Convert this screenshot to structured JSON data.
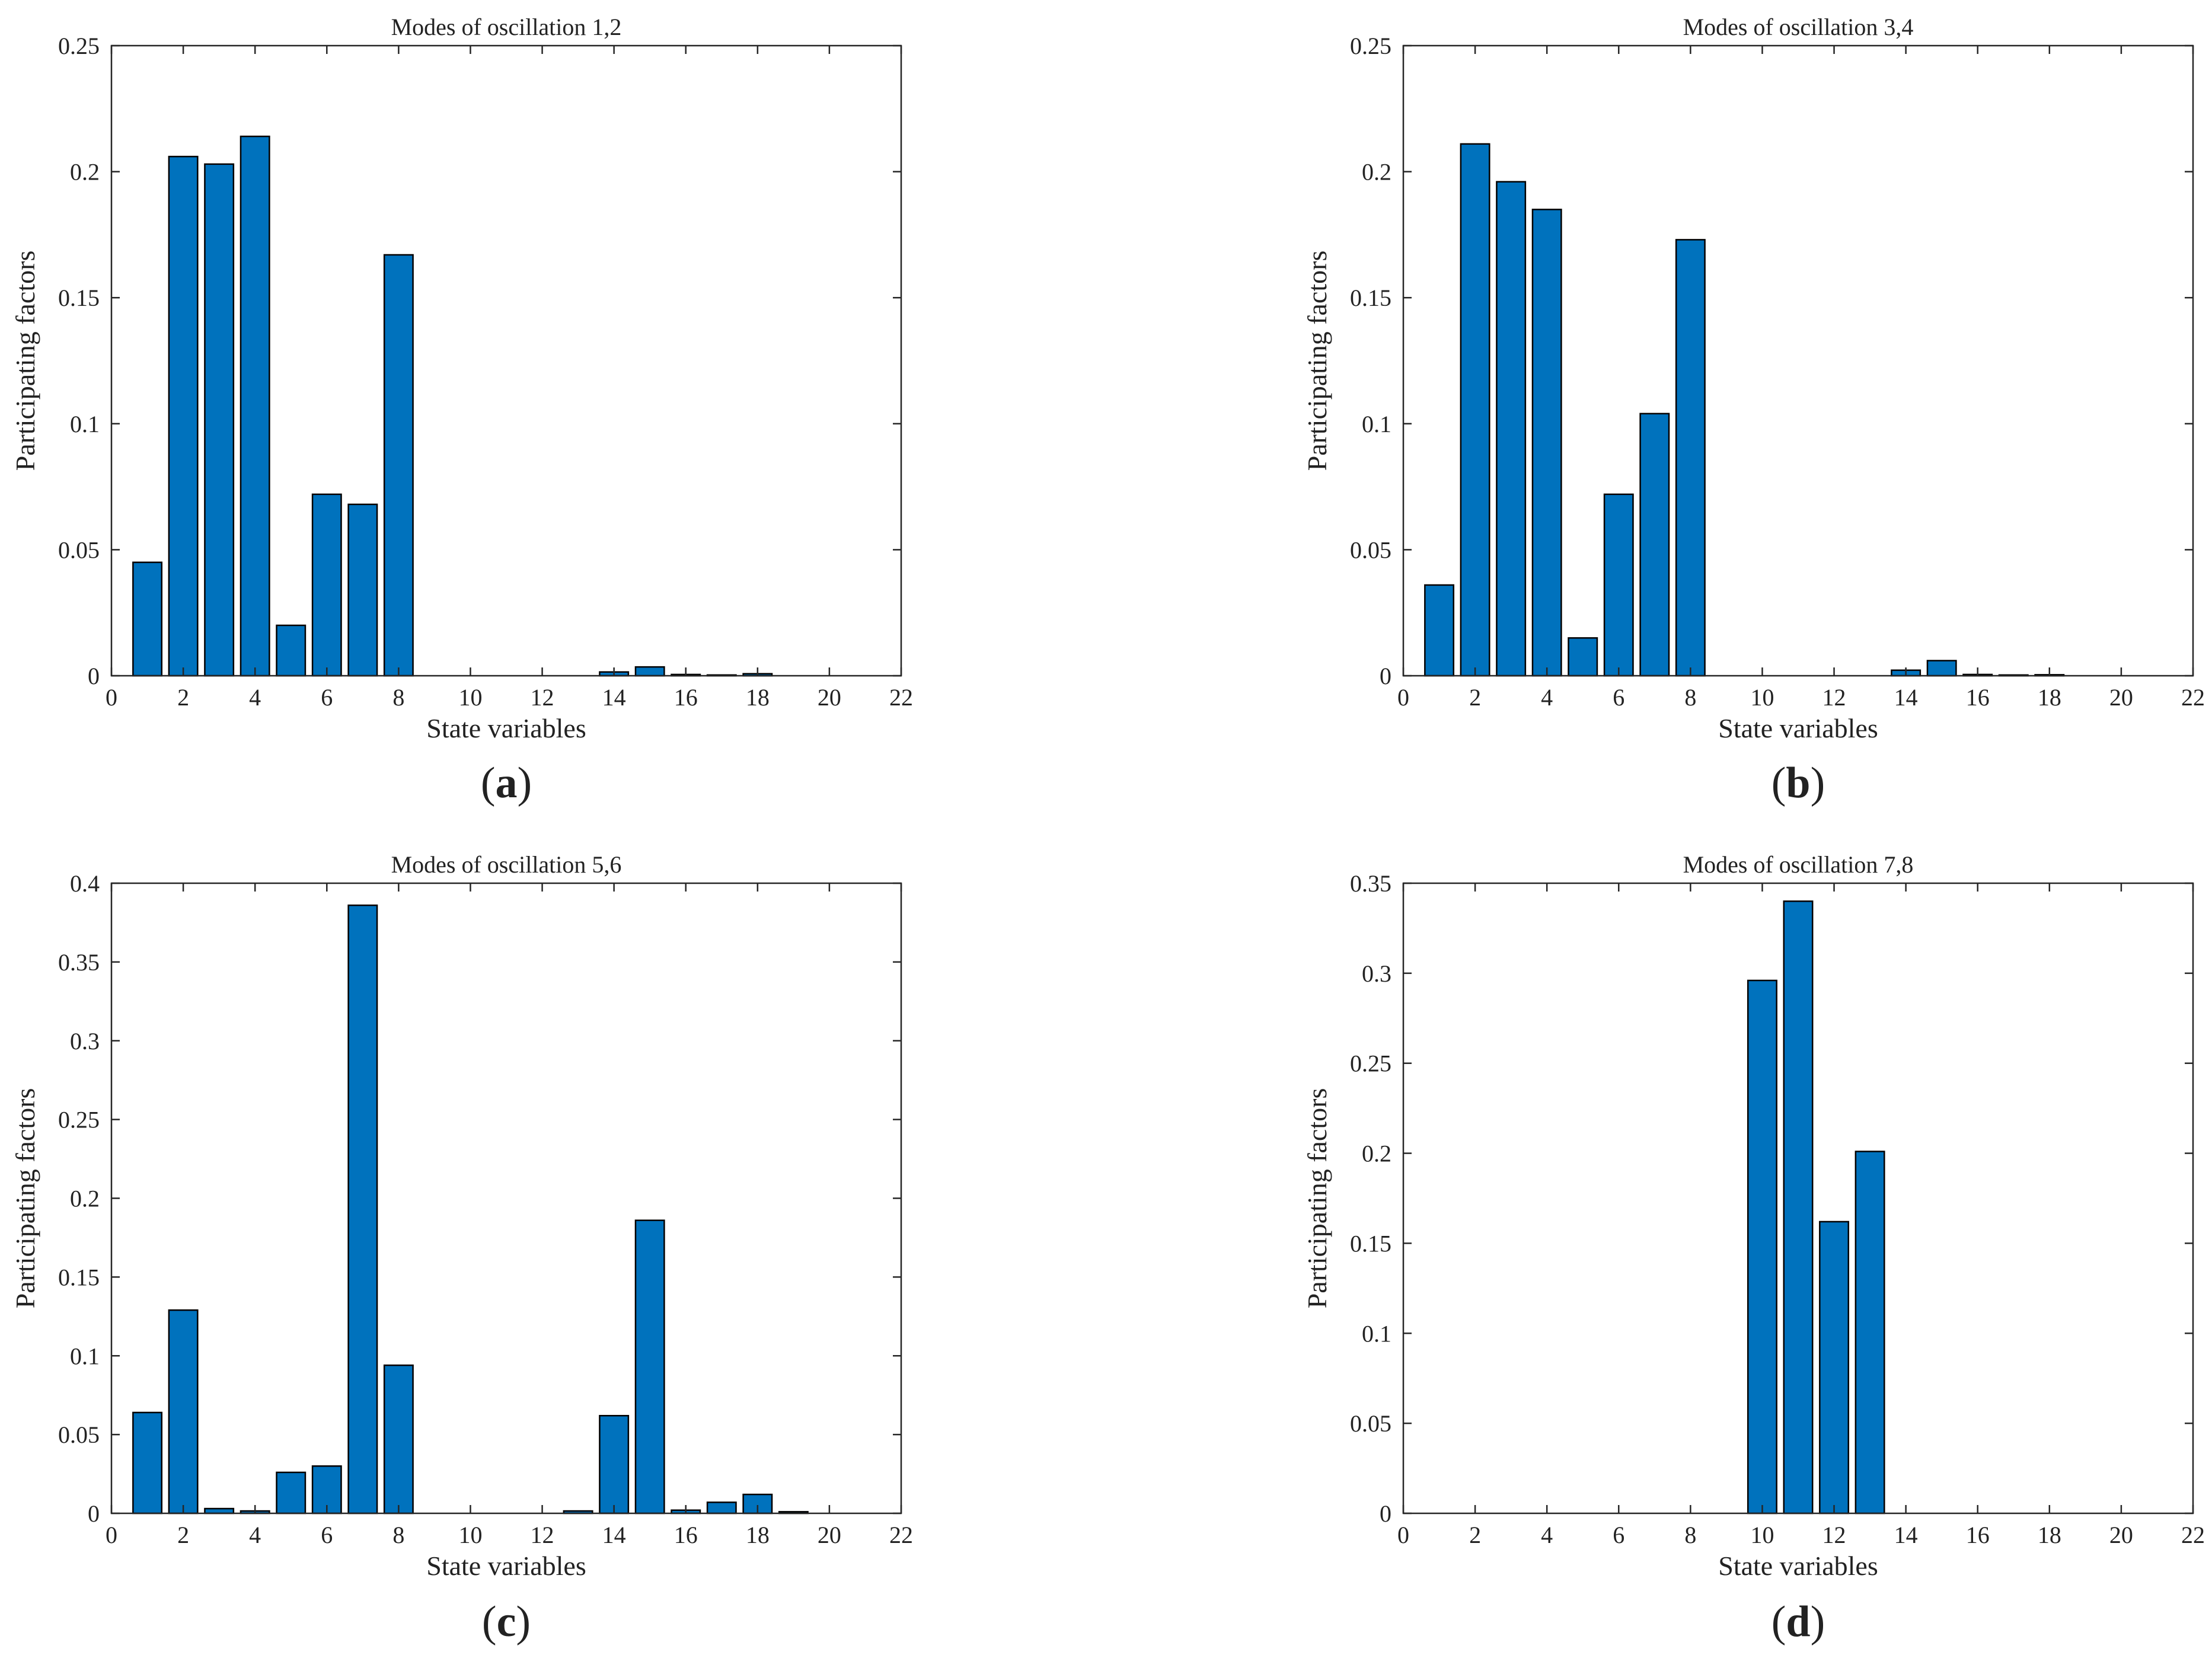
{
  "chart_data": [
    {
      "type": "bar",
      "panel": "a",
      "caption": "(a)",
      "caption_letter": "a",
      "title": "Modes of oscillation 1,2",
      "xlabel": "State variables",
      "ylabel": "Participating factors",
      "xlim": [
        0,
        22
      ],
      "ylim": [
        0,
        0.25
      ],
      "xticks": [
        0,
        2,
        4,
        6,
        8,
        10,
        12,
        14,
        16,
        18,
        20,
        22
      ],
      "yticks": [
        0,
        0.05,
        0.1,
        0.15,
        0.2,
        0.25
      ],
      "ytick_labels": [
        "0",
        "0.05",
        "0.1",
        "0.15",
        "0.2",
        "0.25"
      ],
      "bar_color": "#0072BD",
      "x": [
        1,
        2,
        3,
        4,
        5,
        6,
        7,
        8,
        9,
        10,
        11,
        12,
        13,
        14,
        15,
        16,
        17,
        18,
        19,
        20,
        21
      ],
      "values": [
        0.045,
        0.206,
        0.203,
        0.214,
        0.02,
        0.072,
        0.068,
        0.167,
        0,
        0,
        0,
        0,
        0,
        0.0015,
        0.0035,
        0.0005,
        0.0003,
        0.0008,
        0,
        0,
        0
      ]
    },
    {
      "type": "bar",
      "panel": "b",
      "caption": "(b)",
      "caption_letter": "b",
      "title": "Modes of oscillation 3,4",
      "xlabel": "State variables",
      "ylabel": "Participating factors",
      "xlim": [
        0,
        22
      ],
      "ylim": [
        0,
        0.25
      ],
      "xticks": [
        0,
        2,
        4,
        6,
        8,
        10,
        12,
        14,
        16,
        18,
        20,
        22
      ],
      "yticks": [
        0,
        0.05,
        0.1,
        0.15,
        0.2,
        0.25
      ],
      "ytick_labels": [
        "0",
        "0.05",
        "0.1",
        "0.15",
        "0.2",
        "0.25"
      ],
      "bar_color": "#0072BD",
      "x": [
        1,
        2,
        3,
        4,
        5,
        6,
        7,
        8,
        9,
        10,
        11,
        12,
        13,
        14,
        15,
        16,
        17,
        18,
        19,
        20,
        21
      ],
      "values": [
        0.036,
        0.211,
        0.196,
        0.185,
        0.015,
        0.072,
        0.104,
        0.173,
        0,
        0,
        0,
        0,
        0,
        0.0022,
        0.006,
        0.0005,
        0.0003,
        0.0004,
        0,
        0,
        0
      ]
    },
    {
      "type": "bar",
      "panel": "c",
      "caption": "(c)",
      "caption_letter": "c",
      "title": "Modes of oscillation 5,6",
      "xlabel": "State variables",
      "ylabel": "Participating factors",
      "xlim": [
        0,
        22
      ],
      "ylim": [
        0,
        0.4
      ],
      "xticks": [
        0,
        2,
        4,
        6,
        8,
        10,
        12,
        14,
        16,
        18,
        20,
        22
      ],
      "yticks": [
        0,
        0.05,
        0.1,
        0.15,
        0.2,
        0.25,
        0.3,
        0.35,
        0.4
      ],
      "ytick_labels": [
        "0",
        "0.05",
        "0.1",
        "0.15",
        "0.2",
        "0.25",
        "0.3",
        "0.35",
        "0.4"
      ],
      "bar_color": "#0072BD",
      "x": [
        1,
        2,
        3,
        4,
        5,
        6,
        7,
        8,
        9,
        10,
        11,
        12,
        13,
        14,
        15,
        16,
        17,
        18,
        19,
        20,
        21
      ],
      "values": [
        0.064,
        0.129,
        0.003,
        0.0015,
        0.026,
        0.03,
        0.386,
        0.094,
        0,
        0,
        0,
        0,
        0.0015,
        0.062,
        0.186,
        0.002,
        0.007,
        0.012,
        0.001,
        0,
        0
      ]
    },
    {
      "type": "bar",
      "panel": "d",
      "caption": "(d)",
      "caption_letter": "d",
      "title": "Modes of oscillation 7,8",
      "xlabel": "State variables",
      "ylabel": "Participating factors",
      "xlim": [
        0,
        22
      ],
      "ylim": [
        0,
        0.35
      ],
      "xticks": [
        0,
        2,
        4,
        6,
        8,
        10,
        12,
        14,
        16,
        18,
        20,
        22
      ],
      "yticks": [
        0,
        0.05,
        0.1,
        0.15,
        0.2,
        0.25,
        0.3,
        0.35
      ],
      "ytick_labels": [
        "0",
        "0.05",
        "0.1",
        "0.15",
        "0.2",
        "0.25",
        "0.3",
        "0.35"
      ],
      "bar_color": "#0072BD",
      "x": [
        1,
        2,
        3,
        4,
        5,
        6,
        7,
        8,
        9,
        10,
        11,
        12,
        13,
        14,
        15,
        16,
        17,
        18,
        19,
        20,
        21
      ],
      "values": [
        0,
        0,
        0,
        0,
        0,
        0,
        0,
        0,
        0,
        0.296,
        0.34,
        0.162,
        0.201,
        0,
        0,
        0,
        0,
        0,
        0,
        0,
        0
      ]
    }
  ]
}
